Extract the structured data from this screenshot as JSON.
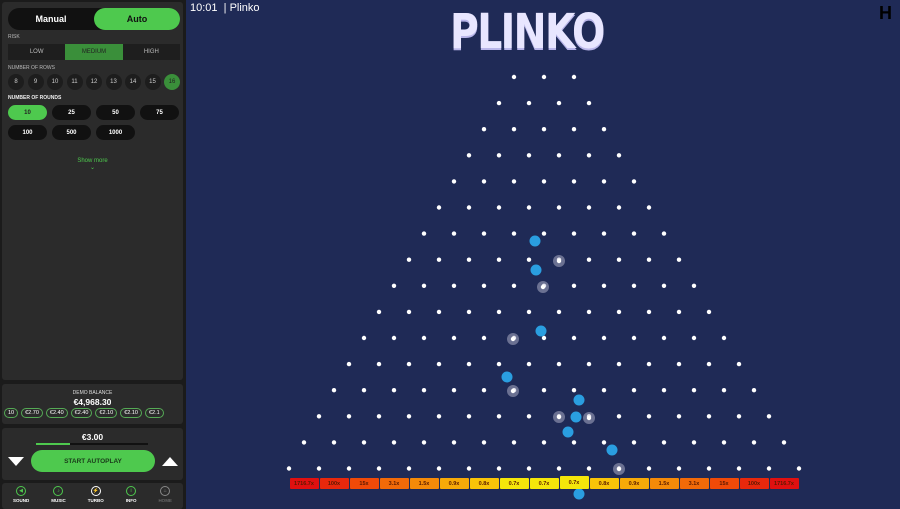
{
  "sidebar": {
    "modes": [
      "Manual",
      "Auto"
    ],
    "active_mode": "Auto",
    "risk_label": "RISK",
    "risk": [
      "LOW",
      "MEDIUM",
      "HIGH"
    ],
    "active_risk": "MEDIUM",
    "rows_label": "NUMBER OF ROWS",
    "rows": [
      "8",
      "9",
      "10",
      "11",
      "12",
      "13",
      "14",
      "15",
      "16"
    ],
    "active_rows": "16",
    "rounds_label": "NUMBER OF ROUNDS",
    "rounds": [
      "10",
      "25",
      "50",
      "75",
      "100",
      "500",
      "1000"
    ],
    "active_rounds": "10",
    "show_more": "Show more",
    "balance_label": "DEMO BALANCE",
    "balance": "€4,968.30",
    "history": [
      "10",
      "€2.70",
      "€2.40",
      "€2.40",
      "€2.10",
      "€2.10",
      "€2.1"
    ],
    "bet": "€3.00",
    "bet_level_percent": 30,
    "start_label": "START AUTOPLAY",
    "footer": [
      {
        "label": "SOUND",
        "icon": "sound-icon"
      },
      {
        "label": "MUSIC",
        "icon": "music-icon"
      },
      {
        "label": "TURBO",
        "icon": "turbo-icon"
      },
      {
        "label": "INFO",
        "icon": "info-icon"
      },
      {
        "label": "HOME",
        "icon": "home-icon"
      }
    ]
  },
  "header": {
    "time": "10:01",
    "title": "| Plinko",
    "logo": "PLINKO",
    "brand_logo": "H"
  },
  "board": {
    "peg_rows": 16,
    "multipliers": [
      "1716.7x",
      "100x",
      "15x",
      "3.1x",
      "1.5x",
      "0.9x",
      "0.8x",
      "0.7x",
      "0.7x",
      "0.7x",
      "0.8x",
      "0.9x",
      "1.5x",
      "3.1x",
      "15x",
      "100x",
      "1716.7x"
    ],
    "colors": {
      "ball": "#2a9ee0",
      "edge": "#e01010",
      "center": "#f5e60a"
    }
  }
}
